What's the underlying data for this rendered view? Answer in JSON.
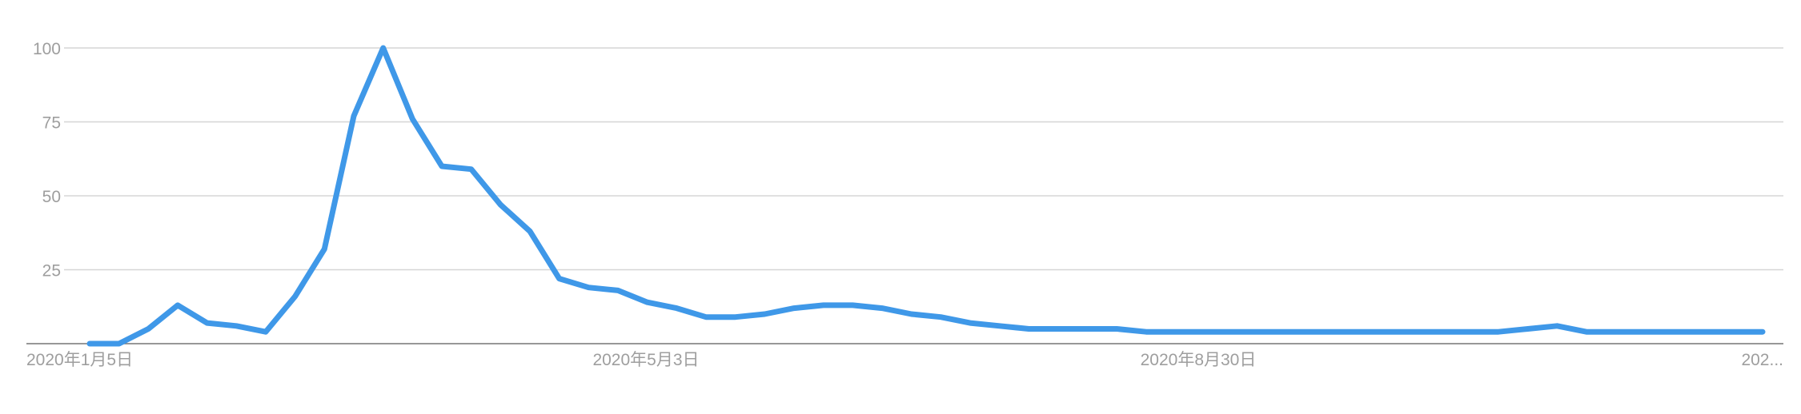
{
  "chart_data": {
    "type": "line",
    "title": "",
    "xlabel": "",
    "ylabel": "",
    "ylim": [
      0,
      100
    ],
    "yticks": [
      25,
      50,
      75,
      100
    ],
    "xtick_labels": [
      "2020年1月5日",
      "2020年5月3日",
      "2020年8月30日",
      "202..."
    ],
    "x_start": "2020-01-05",
    "x_interval": "1 week",
    "grid": true,
    "legend": "none",
    "colors": {
      "series": "#3f98e8",
      "grid": "#d6d6d6",
      "axis": "#757575",
      "tick_text": "#9e9e9e"
    },
    "series": [
      {
        "values": [
          0,
          0,
          5,
          13,
          7,
          6,
          4,
          16,
          32,
          77,
          100,
          76,
          60,
          59,
          47,
          38,
          22,
          19,
          18,
          14,
          12,
          9,
          9,
          10,
          12,
          13,
          13,
          12,
          10,
          9,
          7,
          6,
          5,
          5,
          5,
          5,
          4,
          4,
          4,
          4,
          4,
          4,
          4,
          4,
          4,
          4,
          4,
          4,
          4,
          5,
          6,
          4,
          4,
          4,
          4,
          4,
          4,
          4
        ]
      }
    ]
  }
}
